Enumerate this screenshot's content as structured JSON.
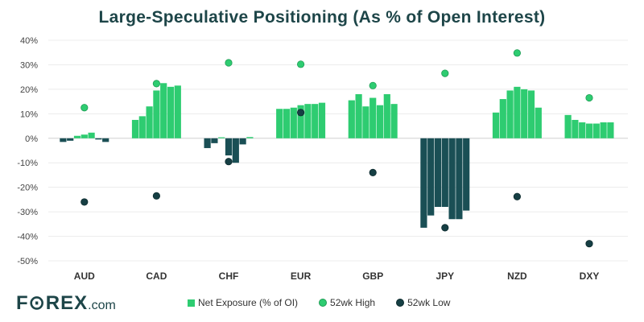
{
  "colors": {
    "positive": "#2ecc71",
    "negative": "#1a4f55",
    "high": "#2ecc71",
    "low": "#163f44"
  },
  "brand": {
    "logo_main": "F⊙REX",
    "logo_suffix": ".com"
  },
  "chart_data": {
    "type": "bar",
    "title": "Large-Speculative Positioning (As % of Open Interest)",
    "ylim": [
      -50,
      40
    ],
    "yticks": [
      40,
      30,
      20,
      10,
      0,
      -10,
      -20,
      -30,
      -40,
      -50
    ],
    "ytick_labels": [
      "40%",
      "30%",
      "20%",
      "10%",
      "0%",
      "-10%",
      "-20%",
      "-30%",
      "-40%",
      "-50%"
    ],
    "legend": {
      "net": "Net Exposure (% of OI)",
      "high": "52wk High",
      "low": "52wk Low"
    },
    "groups": [
      {
        "name": "AUD",
        "values": [
          -1.5,
          -1,
          1,
          1.5,
          2.3,
          -0.5,
          -1.5
        ],
        "high": 12.5,
        "low": -26
      },
      {
        "name": "CAD",
        "values": [
          7.5,
          9,
          13,
          19.5,
          22.5,
          21,
          21.5
        ],
        "high": 22.3,
        "low": -23.5
      },
      {
        "name": "CHF",
        "values": [
          -4,
          -2,
          0.4,
          -7,
          -10,
          -2.5,
          0.5
        ],
        "high": 30.8,
        "low": -9.5
      },
      {
        "name": "EUR",
        "values": [
          12,
          12,
          12.5,
          13.5,
          14,
          14,
          14.5
        ],
        "high": 30.2,
        "low": 10.5
      },
      {
        "name": "GBP",
        "values": [
          15.5,
          18,
          13,
          16.5,
          13.5,
          18,
          14
        ],
        "high": 21.5,
        "low": -14
      },
      {
        "name": "JPY",
        "values": [
          -36.5,
          -31.5,
          -28,
          -28,
          -33,
          -33,
          -29.5
        ],
        "high": 26.5,
        "low": -36.5
      },
      {
        "name": "NZD",
        "values": [
          10.5,
          16,
          19.5,
          21,
          20,
          19.5,
          12.5
        ],
        "high": 34.8,
        "low": -23.8
      },
      {
        "name": "DXY",
        "values": [
          9.5,
          7.5,
          6.5,
          6,
          6,
          6.5,
          6.5
        ],
        "high": 16.5,
        "low": -43
      }
    ]
  }
}
